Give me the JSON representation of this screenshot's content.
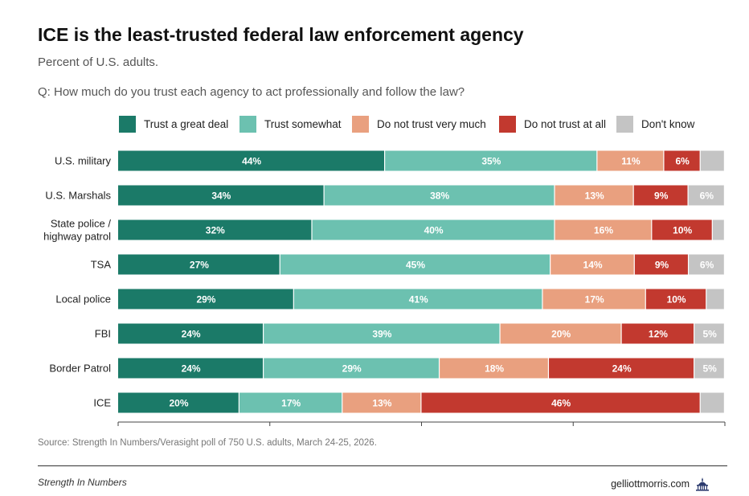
{
  "header": {
    "title": "ICE is the least-trusted federal law enforcement agency",
    "subtitle": "Percent of U.S. adults.",
    "question": "Q: How much do you trust each agency to act professionally and follow the law?"
  },
  "chart_data": {
    "type": "bar",
    "orientation": "horizontal",
    "stacked": true,
    "xlim": [
      0,
      100
    ],
    "grid": false,
    "legend_position": "top",
    "categories": [
      "U.S. military",
      "U.S. Marshals",
      "State police / highway patrol",
      "TSA",
      "Local police",
      "FBI",
      "Border Patrol",
      "ICE"
    ],
    "category_lines": [
      [
        "U.S. military"
      ],
      [
        "U.S. Marshals"
      ],
      [
        "State police /",
        "highway patrol"
      ],
      [
        "TSA"
      ],
      [
        "Local police"
      ],
      [
        "FBI"
      ],
      [
        "Border Patrol"
      ],
      [
        "ICE"
      ]
    ],
    "series": [
      {
        "name": "Trust a great deal",
        "color": "#1b7a68",
        "values": [
          44,
          34,
          32,
          27,
          29,
          24,
          24,
          20
        ],
        "labels": [
          "44%",
          "34%",
          "32%",
          "27%",
          "29%",
          "24%",
          "24%",
          "20%"
        ]
      },
      {
        "name": "Trust somewhat",
        "color": "#6cc1b0",
        "values": [
          35,
          38,
          40,
          45,
          41,
          39,
          29,
          17
        ],
        "labels": [
          "35%",
          "38%",
          "40%",
          "45%",
          "41%",
          "39%",
          "29%",
          "17%"
        ]
      },
      {
        "name": "Do not trust very much",
        "color": "#e9a07f",
        "values": [
          11,
          13,
          16,
          14,
          17,
          20,
          18,
          13
        ],
        "labels": [
          "11%",
          "13%",
          "16%",
          "14%",
          "17%",
          "20%",
          "18%",
          "13%"
        ]
      },
      {
        "name": "Do not trust at all",
        "color": "#c2392f",
        "values": [
          6,
          9,
          10,
          9,
          10,
          12,
          24,
          46
        ],
        "labels": [
          "6%",
          "9%",
          "10%",
          "9%",
          "10%",
          "12%",
          "24%",
          "46%"
        ]
      },
      {
        "name": "Don't know",
        "color": "#c4c4c4",
        "values": [
          4,
          6,
          2,
          6,
          3,
          5,
          5,
          4
        ],
        "labels": [
          "",
          "6%",
          "",
          "6%",
          "",
          "5%",
          "5%",
          ""
        ]
      }
    ]
  },
  "footer": {
    "source": "Source: Strength In Numbers/Verasight poll of 750 U.S. adults, March 24-25, 2026.",
    "brand": "Strength In Numbers",
    "site": "gelliottmorris.com",
    "site_icon": "capitol-icon"
  }
}
